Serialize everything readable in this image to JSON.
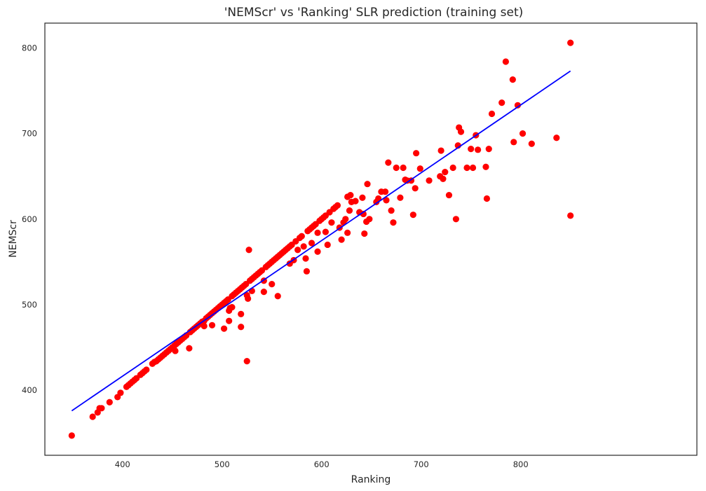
{
  "chart_data": {
    "type": "scatter",
    "title": "'NEMScr' vs 'Ranking' SLR prediction (training set)",
    "xlabel": "Ranking",
    "ylabel": "NEMScr",
    "xlim": [
      322,
      977
    ],
    "ylim": [
      324,
      829
    ],
    "xticks": [
      400,
      500,
      600,
      700,
      800
    ],
    "yticks": [
      400,
      500,
      600,
      700,
      800
    ],
    "grid": false,
    "colors": {
      "points": "#ff0000",
      "line": "#0000ff",
      "frame": "#262626"
    },
    "regression_line": {
      "x": [
        349,
        850
      ],
      "y": [
        376,
        773
      ]
    },
    "points": [
      [
        349,
        347
      ],
      [
        370,
        369
      ],
      [
        375,
        374
      ],
      [
        377,
        379
      ],
      [
        379,
        379
      ],
      [
        387,
        386
      ],
      [
        395,
        392
      ],
      [
        398,
        397
      ],
      [
        404,
        404
      ],
      [
        406,
        406
      ],
      [
        408,
        408
      ],
      [
        410,
        410
      ],
      [
        412,
        412
      ],
      [
        414,
        414
      ],
      [
        418,
        418
      ],
      [
        420,
        420
      ],
      [
        422,
        422
      ],
      [
        424,
        424
      ],
      [
        430,
        431
      ],
      [
        432,
        433
      ],
      [
        434,
        434
      ],
      [
        436,
        436
      ],
      [
        438,
        438
      ],
      [
        440,
        440
      ],
      [
        442,
        442
      ],
      [
        444,
        444
      ],
      [
        446,
        446
      ],
      [
        448,
        448
      ],
      [
        450,
        450
      ],
      [
        452,
        452
      ],
      [
        454,
        454
      ],
      [
        453,
        446
      ],
      [
        456,
        456
      ],
      [
        458,
        458
      ],
      [
        460,
        460
      ],
      [
        462,
        462
      ],
      [
        464,
        464
      ],
      [
        467,
        449
      ],
      [
        468,
        468
      ],
      [
        470,
        470
      ],
      [
        472,
        472
      ],
      [
        474,
        474
      ],
      [
        476,
        476
      ],
      [
        478,
        478
      ],
      [
        480,
        480
      ],
      [
        482,
        481
      ],
      [
        482,
        475
      ],
      [
        484,
        484
      ],
      [
        486,
        486
      ],
      [
        488,
        488
      ],
      [
        490,
        490
      ],
      [
        490,
        476
      ],
      [
        492,
        492
      ],
      [
        494,
        494
      ],
      [
        496,
        496
      ],
      [
        498,
        498
      ],
      [
        500,
        500
      ],
      [
        502,
        502
      ],
      [
        502,
        472
      ],
      [
        504,
        504
      ],
      [
        506,
        506
      ],
      [
        507,
        493
      ],
      [
        508,
        496
      ],
      [
        507,
        481
      ],
      [
        510,
        510
      ],
      [
        510,
        497
      ],
      [
        512,
        512
      ],
      [
        514,
        514
      ],
      [
        516,
        516
      ],
      [
        518,
        518
      ],
      [
        519,
        489
      ],
      [
        519,
        474
      ],
      [
        520,
        520
      ],
      [
        522,
        522
      ],
      [
        524,
        524
      ],
      [
        525,
        511
      ],
      [
        525,
        434
      ],
      [
        526,
        507
      ],
      [
        527,
        564
      ],
      [
        528,
        528
      ],
      [
        530,
        530
      ],
      [
        530,
        516
      ],
      [
        532,
        532
      ],
      [
        534,
        534
      ],
      [
        536,
        536
      ],
      [
        538,
        538
      ],
      [
        540,
        540
      ],
      [
        542,
        528
      ],
      [
        542,
        515
      ],
      [
        544,
        544
      ],
      [
        546,
        546
      ],
      [
        548,
        548
      ],
      [
        550,
        550
      ],
      [
        550,
        524
      ],
      [
        552,
        552
      ],
      [
        554,
        554
      ],
      [
        556,
        556
      ],
      [
        556,
        510
      ],
      [
        558,
        558
      ],
      [
        560,
        560
      ],
      [
        562,
        562
      ],
      [
        564,
        564
      ],
      [
        566,
        566
      ],
      [
        568,
        568
      ],
      [
        568,
        548
      ],
      [
        570,
        570
      ],
      [
        572,
        552
      ],
      [
        574,
        574
      ],
      [
        576,
        564
      ],
      [
        578,
        578
      ],
      [
        580,
        580
      ],
      [
        582,
        568
      ],
      [
        584,
        554
      ],
      [
        585,
        539
      ],
      [
        586,
        586
      ],
      [
        588,
        588
      ],
      [
        590,
        590
      ],
      [
        590,
        572
      ],
      [
        592,
        592
      ],
      [
        594,
        594
      ],
      [
        596,
        584
      ],
      [
        596,
        562
      ],
      [
        598,
        598
      ],
      [
        600,
        600
      ],
      [
        602,
        602
      ],
      [
        604,
        604
      ],
      [
        604,
        585
      ],
      [
        606,
        570
      ],
      [
        608,
        608
      ],
      [
        610,
        596
      ],
      [
        612,
        612
      ],
      [
        614,
        614
      ],
      [
        616,
        616
      ],
      [
        618,
        590
      ],
      [
        620,
        576
      ],
      [
        622,
        596
      ],
      [
        624,
        600
      ],
      [
        626,
        626
      ],
      [
        626,
        584
      ],
      [
        628,
        610
      ],
      [
        629,
        628
      ],
      [
        630,
        620
      ],
      [
        634,
        621
      ],
      [
        638,
        608
      ],
      [
        641,
        625
      ],
      [
        642,
        606
      ],
      [
        643,
        583
      ],
      [
        645,
        597
      ],
      [
        646,
        641
      ],
      [
        648,
        600
      ],
      [
        655,
        620
      ],
      [
        657,
        624
      ],
      [
        660,
        632
      ],
      [
        664,
        632
      ],
      [
        665,
        622
      ],
      [
        667,
        666
      ],
      [
        670,
        610
      ],
      [
        672,
        596
      ],
      [
        675,
        660
      ],
      [
        679,
        625
      ],
      [
        682,
        660
      ],
      [
        684,
        646
      ],
      [
        686,
        645
      ],
      [
        690,
        645
      ],
      [
        692,
        605
      ],
      [
        694,
        636
      ],
      [
        695,
        677
      ],
      [
        699,
        659
      ],
      [
        708,
        645
      ],
      [
        719,
        650
      ],
      [
        720,
        680
      ],
      [
        722,
        647
      ],
      [
        724,
        655
      ],
      [
        728,
        628
      ],
      [
        732,
        660
      ],
      [
        735,
        600
      ],
      [
        737,
        686
      ],
      [
        738,
        707
      ],
      [
        740,
        702
      ],
      [
        746,
        660
      ],
      [
        750,
        682
      ],
      [
        752,
        660
      ],
      [
        755,
        698
      ],
      [
        757,
        681
      ],
      [
        765,
        661
      ],
      [
        766,
        624
      ],
      [
        768,
        682
      ],
      [
        771,
        723
      ],
      [
        781,
        736
      ],
      [
        785,
        784
      ],
      [
        792,
        763
      ],
      [
        793,
        690
      ],
      [
        797,
        733
      ],
      [
        802,
        700
      ],
      [
        811,
        688
      ],
      [
        836,
        695
      ],
      [
        850,
        806
      ],
      [
        850,
        604
      ]
    ]
  }
}
